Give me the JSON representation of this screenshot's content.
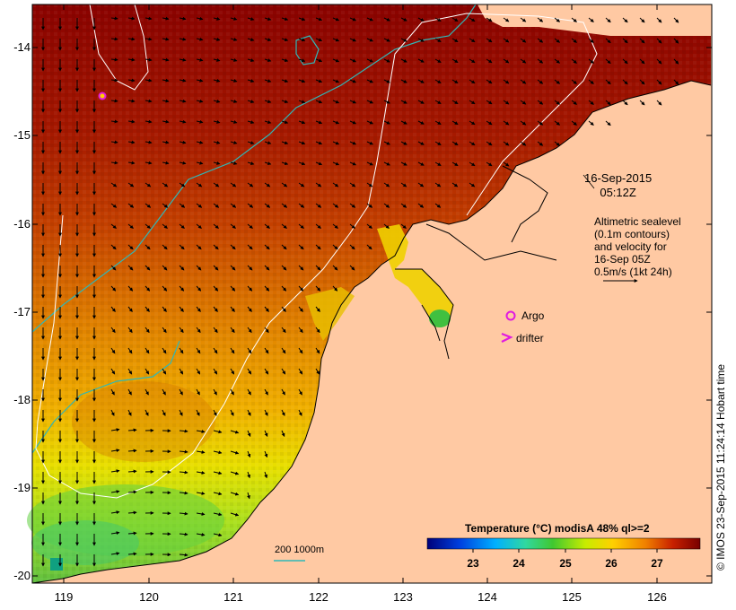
{
  "map": {
    "x_ticks": [
      "119",
      "120",
      "121",
      "122",
      "123",
      "124",
      "125",
      "126"
    ],
    "y_ticks": [
      "-14",
      "-15",
      "-16",
      "-17",
      "-18",
      "-19",
      "-20"
    ],
    "timestamp_lines": [
      "16-Sep-2015",
      "05:12Z"
    ],
    "altimetry_lines": [
      "Altimetric sealevel",
      "(0.1m contours)",
      "and velocity for",
      "16-Sep 05Z",
      "0.5m/s (1kt 24h)"
    ],
    "legend_argo": "Argo",
    "legend_drifter": "drifter",
    "colorbar_title": "Temperature (°C) modisA 48% ql>=2",
    "colorbar_ticks": [
      "23",
      "24",
      "25",
      "26",
      "27"
    ],
    "bathymetry_label": "200  1000m",
    "credit": "© IMOS 23-Sep-2015 11:24:14 Hobart time",
    "colors": {
      "land": "#ffc9a3",
      "coast": "#000000",
      "bathy_200": "#2fb7b7",
      "bathy_1000": "#ffffff",
      "argo_marker": "#e01ae0",
      "drifter_marker": "#e01ae0"
    },
    "colorbar_stops": [
      "#00007a",
      "#0050ff",
      "#00c8ff",
      "#40e0a0",
      "#50d030",
      "#e0f000",
      "#ffc000",
      "#e07000",
      "#c02000",
      "#7a0000"
    ],
    "temperature_range": [
      22.2,
      27.8
    ]
  }
}
